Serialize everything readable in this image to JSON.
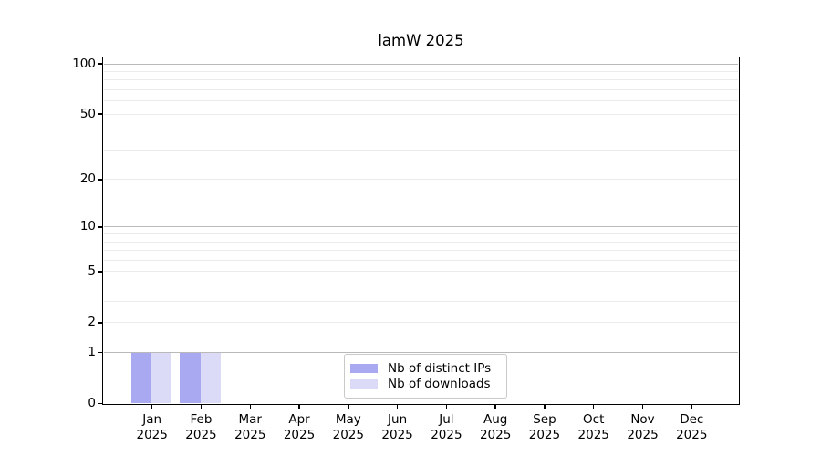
{
  "chart_data": {
    "type": "bar",
    "title": "lamW 2025",
    "categories": [
      "Jan",
      "Feb",
      "Mar",
      "Apr",
      "May",
      "Jun",
      "Jul",
      "Aug",
      "Sep",
      "Oct",
      "Nov",
      "Dec"
    ],
    "category_year": "2025",
    "series": [
      {
        "name": "Nb of distinct IPs",
        "color": "#a9a9f1",
        "values": [
          1,
          1,
          0,
          0,
          0,
          0,
          0,
          0,
          0,
          0,
          0,
          0
        ]
      },
      {
        "name": "Nb of downloads",
        "color": "#dbdbf8",
        "values": [
          1,
          1,
          0,
          0,
          0,
          0,
          0,
          0,
          0,
          0,
          0,
          0
        ]
      }
    ],
    "xlabel": "",
    "ylabel": "",
    "ylim": [
      0,
      109
    ],
    "scale": "log1p",
    "yticks": [
      0,
      1,
      2,
      5,
      10,
      20,
      50,
      100
    ],
    "grid": {
      "major_values": [
        1,
        10,
        100
      ],
      "minor_values": [
        2,
        3,
        4,
        5,
        6,
        7,
        8,
        9,
        20,
        30,
        40,
        50,
        60,
        70,
        80,
        90
      ],
      "major_color": "#b9b9b9",
      "minor_color": "#ebebeb"
    },
    "legend": {
      "position": "lower center"
    }
  }
}
